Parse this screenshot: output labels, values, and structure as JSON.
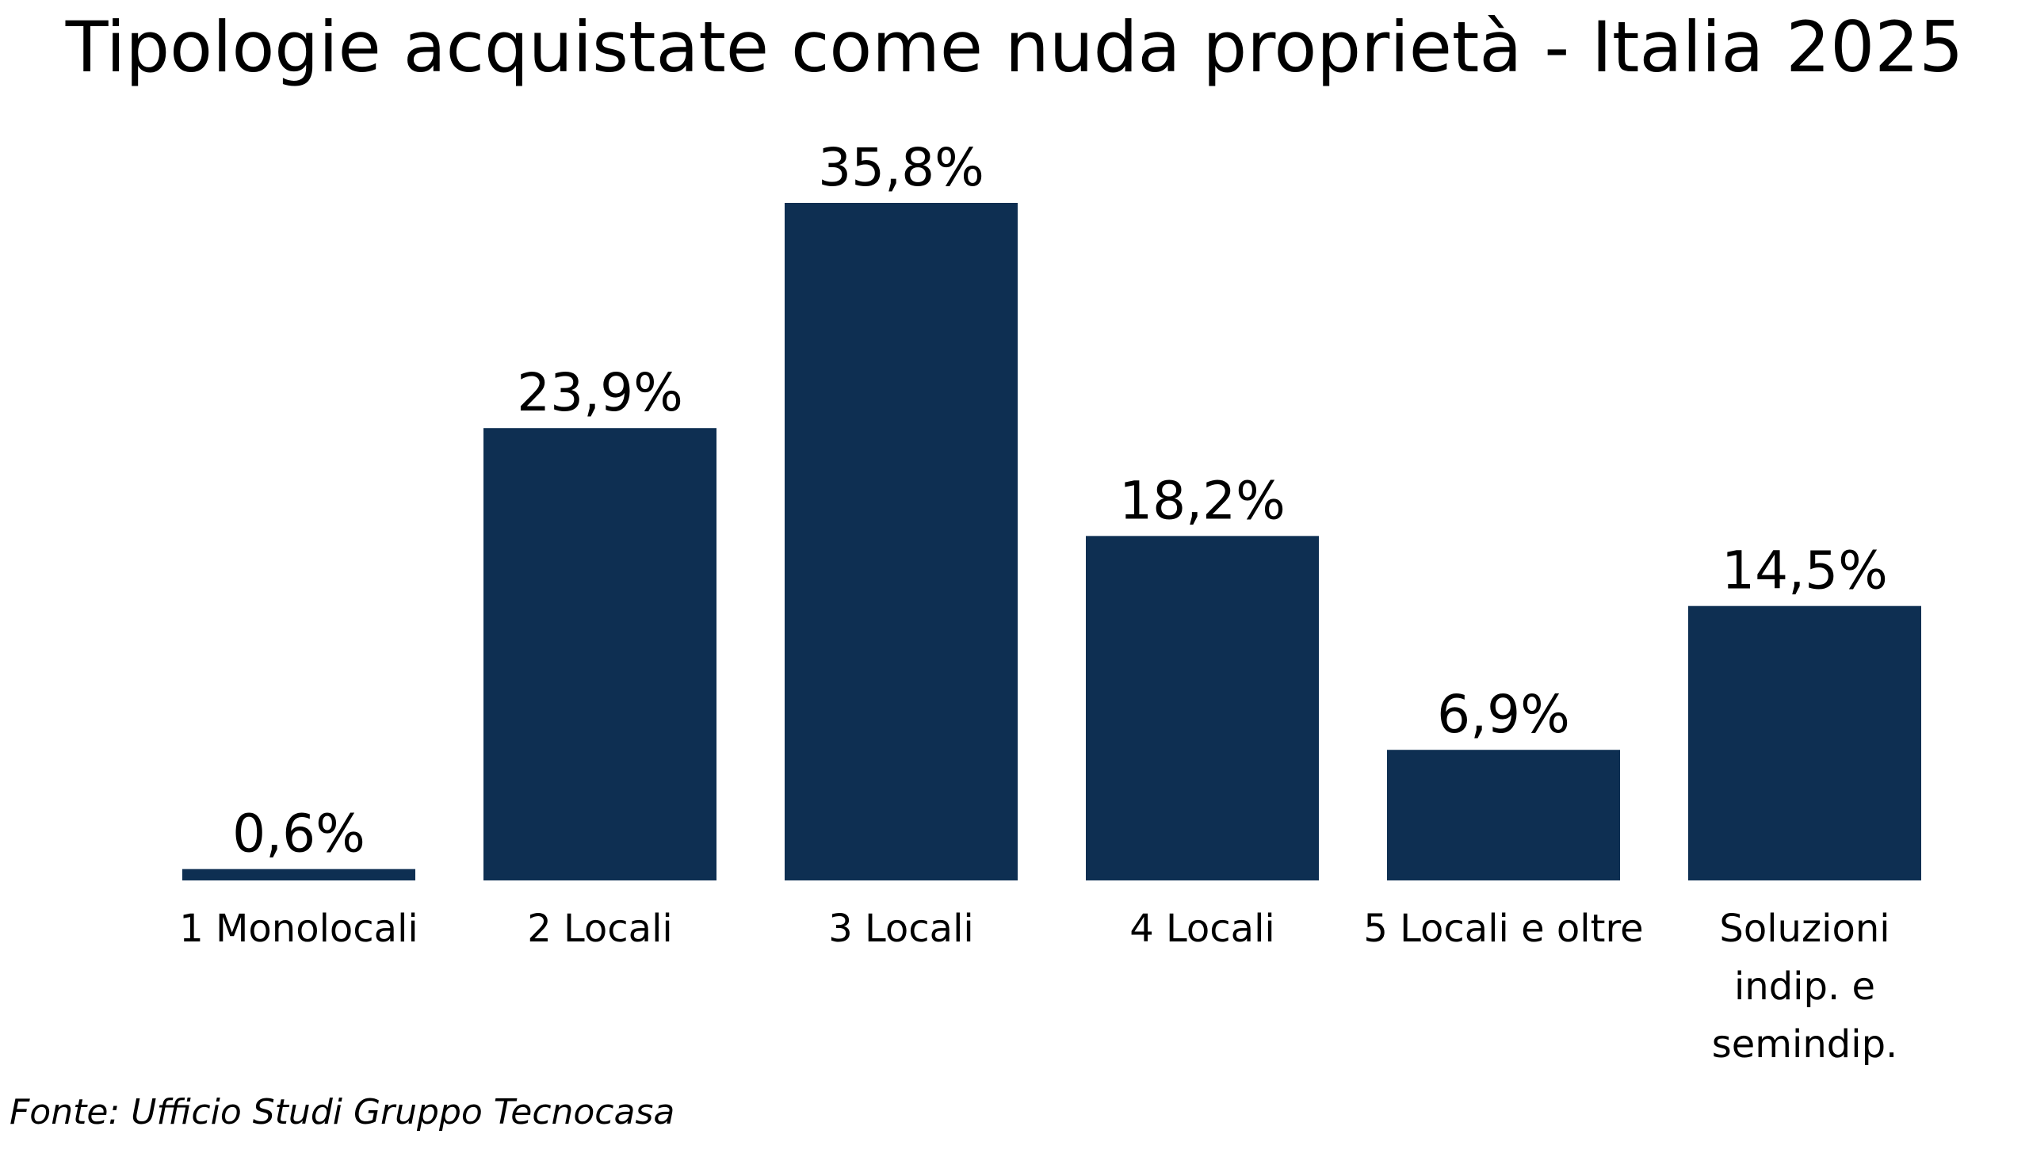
{
  "chart_data": {
    "type": "bar",
    "title": "Tipologie acquistate come nuda proprietà - Italia 2025",
    "xlabel": "",
    "ylabel": "",
    "categories": [
      [
        "1 Monolocali"
      ],
      [
        "2 Locali"
      ],
      [
        "3 Locali"
      ],
      [
        "4 Locali"
      ],
      [
        "5 Locali e oltre"
      ],
      [
        "Soluzioni",
        "indip. e",
        "semindip."
      ]
    ],
    "values": [
      0.6,
      23.9,
      35.8,
      18.2,
      6.9,
      14.5
    ],
    "value_labels": [
      "0,6%",
      "23,9%",
      "35,8%",
      "18,2%",
      "6,9%",
      "14,5%"
    ],
    "unit": "%",
    "ylim": [
      0,
      35.8
    ],
    "grid": false,
    "legend": "none",
    "bar_color": "#0e2f52"
  },
  "source": "Fonte: Ufficio Studi Gruppo Tecnocasa"
}
